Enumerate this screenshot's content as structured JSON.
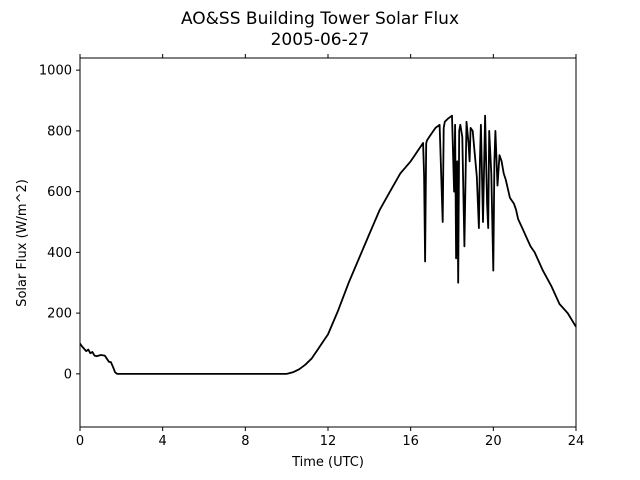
{
  "chart_data": {
    "type": "line",
    "title": "AO&SS Building Tower Solar Flux",
    "subtitle": "2005-06-27",
    "xlabel": "Time (UTC)",
    "ylabel": "Solar Flux (W/m^2)",
    "xlim": [
      0,
      24
    ],
    "ylim": [
      -175,
      1040
    ],
    "xticks": [
      0,
      4,
      8,
      12,
      16,
      20,
      24
    ],
    "yticks": [
      0,
      200,
      400,
      600,
      800,
      1000
    ],
    "grid": false,
    "legend": "none",
    "line_color": "#000000",
    "series": [
      {
        "x": [
          0,
          0.1,
          0.3,
          0.4,
          0.5,
          0.6,
          0.7,
          0.8,
          1.0,
          1.2,
          1.4,
          1.5,
          1.6,
          1.7,
          1.8,
          1.9,
          2.0,
          2.2,
          4,
          6,
          8,
          9,
          9.5,
          10,
          10.3,
          10.6,
          10.9,
          11.2,
          11.5,
          11.8,
          12,
          12.5,
          13,
          13.5,
          14,
          14.5,
          15,
          15.5,
          16,
          16.2,
          16.4,
          16.6,
          16.65,
          16.7,
          16.75,
          16.8,
          17.0,
          17.2,
          17.4,
          17.55,
          17.6,
          17.65,
          17.8,
          18.0,
          18.1,
          18.15,
          18.2,
          18.25,
          18.3,
          18.35,
          18.4,
          18.5,
          18.6,
          18.7,
          18.8,
          18.85,
          18.9,
          19.0,
          19.2,
          19.3,
          19.35,
          19.4,
          19.5,
          19.6,
          19.7,
          19.75,
          19.8,
          19.9,
          20.0,
          20.05,
          20.1,
          20.2,
          20.3,
          20.4,
          20.5,
          20.6,
          20.8,
          21.0,
          21.1,
          21.2,
          21.4,
          21.6,
          21.8,
          22.0,
          22.4,
          22.8,
          23.2,
          23.6,
          24.0
        ],
        "y": [
          100,
          90,
          75,
          80,
          68,
          72,
          60,
          58,
          62,
          60,
          40,
          38,
          22,
          5,
          0,
          0,
          0,
          0,
          0,
          0,
          0,
          0,
          0,
          0,
          5,
          15,
          30,
          50,
          80,
          110,
          130,
          210,
          300,
          380,
          460,
          540,
          600,
          660,
          700,
          720,
          740,
          760,
          650,
          370,
          760,
          770,
          790,
          810,
          820,
          500,
          810,
          830,
          840,
          850,
          600,
          820,
          380,
          700,
          300,
          800,
          820,
          780,
          420,
          830,
          760,
          700,
          810,
          800,
          650,
          480,
          700,
          820,
          500,
          850,
          560,
          480,
          800,
          660,
          340,
          700,
          800,
          620,
          720,
          700,
          660,
          640,
          580,
          560,
          540,
          510,
          480,
          450,
          420,
          400,
          340,
          290,
          230,
          200,
          155
        ]
      }
    ]
  }
}
